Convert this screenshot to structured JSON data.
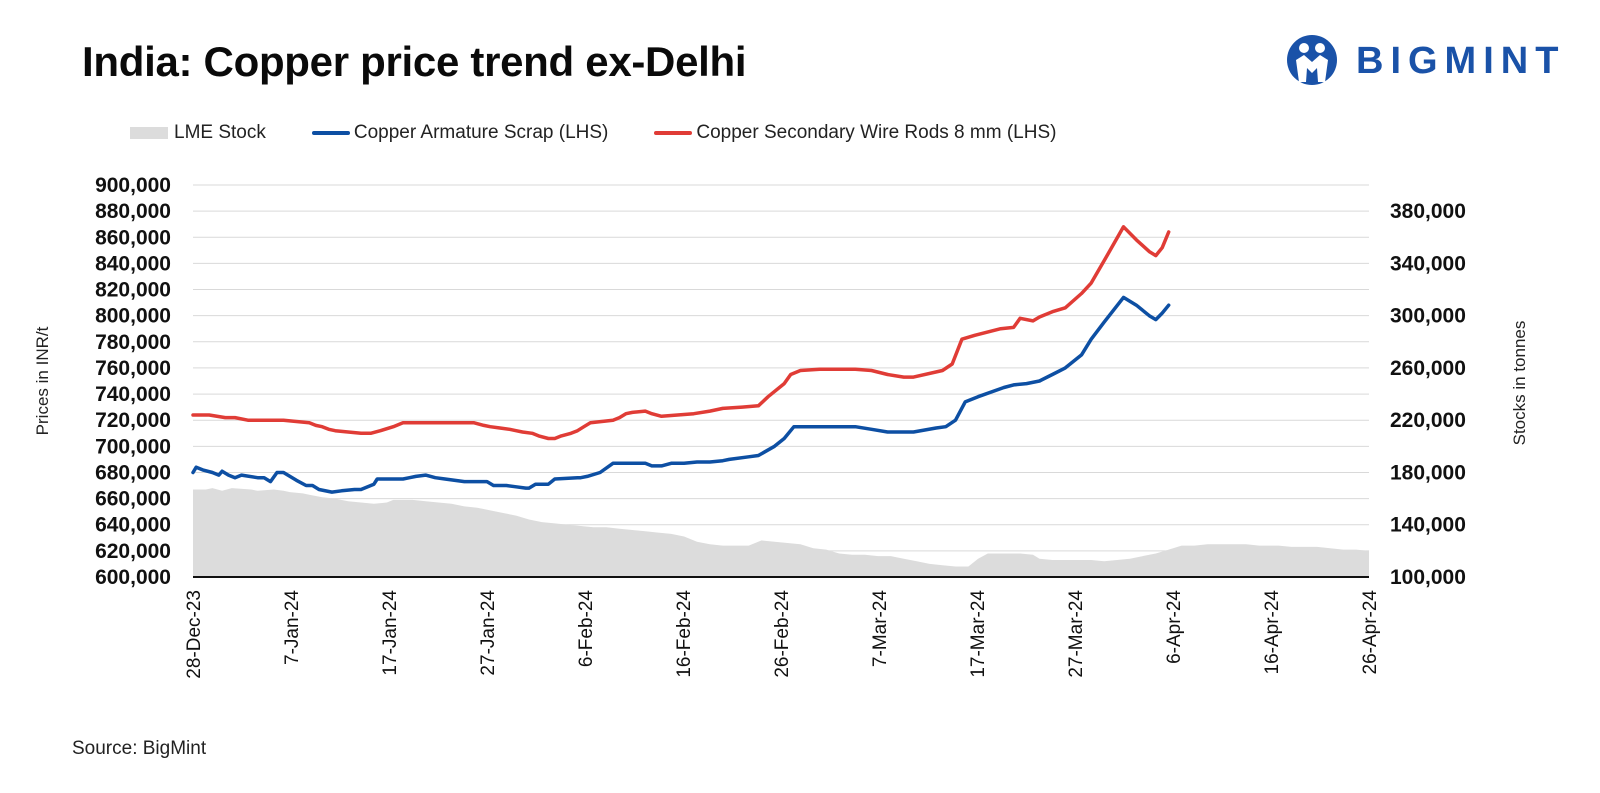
{
  "title": "India: Copper price trend ex-Delhi",
  "brand": {
    "name": "BIGMINT",
    "color": "#1a52a8"
  },
  "legend": [
    {
      "label": "LME Stock",
      "kind": "area",
      "color": "#dcdcdc"
    },
    {
      "label": "Copper Armature Scrap (LHS)",
      "kind": "line",
      "color": "#0d4fa3"
    },
    {
      "label": "Copper Secondary Wire Rods 8 mm (LHS)",
      "kind": "line",
      "color": "#e03c36"
    }
  ],
  "source": "Source: BigMint",
  "chart_data": {
    "type": "line",
    "title": "India: Copper price trend ex-Delhi",
    "x_start": "28-Dec-23",
    "x_end": "26-Apr-24",
    "num_days": 120,
    "x_ticks": [
      "28-Dec-23",
      "7-Jan-24",
      "17-Jan-24",
      "27-Jan-24",
      "6-Feb-24",
      "16-Feb-24",
      "26-Feb-24",
      "7-Mar-24",
      "17-Mar-24",
      "27-Mar-24",
      "6-Apr-24",
      "16-Apr-24",
      "26-Apr-24"
    ],
    "ylabel_left": "Prices in INR/t",
    "ylabel_right": "Stocks in tonnes",
    "ylim_left": [
      600000,
      900000
    ],
    "yticks_left": [
      "600,000",
      "620,000",
      "640,000",
      "660,000",
      "680,000",
      "700,000",
      "720,000",
      "740,000",
      "760,000",
      "780,000",
      "800,000",
      "820,000",
      "840,000",
      "860,000",
      "880,000",
      "900,000"
    ],
    "ylim_right": [
      100000,
      400000
    ],
    "yticks_right": [
      "100,000",
      "140,000",
      "180,000",
      "220,000",
      "260,000",
      "300,000",
      "340,000",
      "380,000"
    ],
    "series": [
      {
        "name": "Copper Armature Scrap (LHS)",
        "axis": "left",
        "color": "#0d4fa3",
        "points": [
          [
            0,
            680000
          ],
          [
            1,
            684000
          ],
          [
            3,
            682000
          ],
          [
            6,
            680000
          ],
          [
            8,
            678000
          ],
          [
            9,
            681000
          ],
          [
            11,
            678000
          ],
          [
            13,
            676000
          ],
          [
            15,
            678000
          ],
          [
            20,
            676000
          ],
          [
            22,
            676000
          ],
          [
            24,
            673000
          ],
          [
            26,
            680000
          ],
          [
            28,
            680000
          ],
          [
            32,
            674000
          ],
          [
            35,
            670000
          ],
          [
            37,
            670000
          ],
          [
            39,
            667000
          ],
          [
            43,
            665000
          ],
          [
            46,
            666000
          ],
          [
            50,
            667000
          ],
          [
            52,
            667000
          ],
          [
            56,
            671000
          ],
          [
            57,
            675000
          ],
          [
            63,
            675000
          ],
          [
            65,
            675000
          ],
          [
            67,
            676000
          ],
          [
            69,
            677000
          ],
          [
            72,
            678000
          ],
          [
            75,
            676000
          ],
          [
            78,
            675000
          ],
          [
            84,
            673000
          ],
          [
            87,
            673000
          ],
          [
            91,
            673000
          ],
          [
            93,
            670000
          ],
          [
            97,
            670000
          ],
          [
            100,
            669000
          ],
          [
            103,
            668000
          ],
          [
            104,
            668000
          ],
          [
            106,
            671000
          ],
          [
            110,
            671000
          ],
          [
            112,
            675000
          ],
          [
            119,
            676000
          ],
          [
            120,
            676000
          ],
          [
            122,
            677000
          ],
          [
            126,
            680000
          ],
          [
            130,
            687000
          ],
          [
            131,
            687000
          ],
          [
            133,
            687000
          ],
          [
            140,
            687000
          ],
          [
            142,
            685000
          ],
          [
            145,
            685000
          ],
          [
            148,
            687000
          ],
          [
            152,
            687000
          ],
          [
            156,
            688000
          ],
          [
            160,
            688000
          ],
          [
            164,
            689000
          ],
          [
            166,
            690000
          ],
          [
            172,
            692000
          ],
          [
            175,
            693000
          ],
          [
            180,
            700000
          ],
          [
            183,
            706000
          ],
          [
            186,
            715000
          ],
          [
            190,
            715000
          ],
          [
            194,
            715000
          ],
          [
            196,
            715000
          ],
          [
            205,
            715000
          ],
          [
            210,
            713000
          ],
          [
            215,
            711000
          ],
          [
            220,
            711000
          ],
          [
            223,
            711000
          ],
          [
            230,
            714000
          ],
          [
            233,
            715000
          ],
          [
            236,
            720000
          ],
          [
            239,
            734000
          ],
          [
            243,
            738000
          ],
          [
            251,
            745000
          ],
          [
            254,
            747000
          ],
          [
            258,
            748000
          ],
          [
            262,
            750000
          ],
          [
            266,
            755000
          ],
          [
            270,
            760000
          ],
          [
            275,
            770000
          ],
          [
            278,
            782000
          ],
          [
            282,
            795000
          ],
          [
            288,
            814000
          ],
          [
            292,
            808000
          ],
          [
            296,
            800000
          ],
          [
            298,
            797000
          ],
          [
            300,
            802000
          ],
          [
            302,
            808000
          ]
        ]
      },
      {
        "name": "Copper Secondary Wire Rods 8 mm (LHS)",
        "axis": "left",
        "color": "#e03c36",
        "points": [
          [
            0,
            724000
          ],
          [
            5,
            724000
          ],
          [
            10,
            722000
          ],
          [
            13,
            722000
          ],
          [
            17,
            720000
          ],
          [
            20,
            720000
          ],
          [
            25,
            720000
          ],
          [
            28,
            720000
          ],
          [
            36,
            718000
          ],
          [
            38,
            716000
          ],
          [
            40,
            715000
          ],
          [
            42,
            713000
          ],
          [
            44,
            712000
          ],
          [
            52,
            710000
          ],
          [
            55,
            710000
          ],
          [
            58,
            712000
          ],
          [
            62,
            715000
          ],
          [
            65,
            718000
          ],
          [
            67,
            718000
          ],
          [
            74,
            718000
          ],
          [
            78,
            718000
          ],
          [
            83,
            718000
          ],
          [
            87,
            718000
          ],
          [
            90,
            716000
          ],
          [
            92,
            715000
          ],
          [
            95,
            714000
          ],
          [
            98,
            713000
          ],
          [
            100,
            712000
          ],
          [
            102,
            711000
          ],
          [
            105,
            710000
          ],
          [
            107,
            708000
          ],
          [
            110,
            706000
          ],
          [
            112,
            706000
          ],
          [
            114,
            708000
          ],
          [
            117,
            710000
          ],
          [
            119,
            712000
          ],
          [
            121,
            715000
          ],
          [
            123,
            718000
          ],
          [
            130,
            720000
          ],
          [
            132,
            722000
          ],
          [
            134,
            725000
          ],
          [
            136,
            726000
          ],
          [
            140,
            727000
          ],
          [
            142,
            725000
          ],
          [
            145,
            723000
          ],
          [
            150,
            724000
          ],
          [
            155,
            725000
          ],
          [
            160,
            727000
          ],
          [
            164,
            729000
          ],
          [
            170,
            730000
          ],
          [
            175,
            731000
          ],
          [
            178,
            738000
          ],
          [
            183,
            748000
          ],
          [
            185,
            755000
          ],
          [
            188,
            758000
          ],
          [
            194,
            759000
          ],
          [
            196,
            759000
          ],
          [
            205,
            759000
          ],
          [
            210,
            758000
          ],
          [
            215,
            755000
          ],
          [
            220,
            753000
          ],
          [
            223,
            753000
          ],
          [
            232,
            758000
          ],
          [
            235,
            763000
          ],
          [
            238,
            782000
          ],
          [
            242,
            785000
          ],
          [
            250,
            790000
          ],
          [
            254,
            791000
          ],
          [
            256,
            798000
          ],
          [
            260,
            796000
          ],
          [
            262,
            799000
          ],
          [
            266,
            803000
          ],
          [
            270,
            806000
          ],
          [
            275,
            817000
          ],
          [
            278,
            825000
          ],
          [
            282,
            842000
          ],
          [
            288,
            868000
          ],
          [
            292,
            858000
          ],
          [
            296,
            849000
          ],
          [
            298,
            846000
          ],
          [
            300,
            852000
          ],
          [
            302,
            864000
          ]
        ]
      },
      {
        "name": "LME Stock",
        "axis": "right",
        "color": "#dcdcdc",
        "points": [
          [
            0,
            167000
          ],
          [
            4,
            167000
          ],
          [
            6,
            168000
          ],
          [
            9,
            166000
          ],
          [
            12,
            168000
          ],
          [
            18,
            167000
          ],
          [
            20,
            166000
          ],
          [
            25,
            167000
          ],
          [
            28,
            166000
          ],
          [
            30,
            165000
          ],
          [
            34,
            164000
          ],
          [
            36,
            163000
          ],
          [
            40,
            161000
          ],
          [
            44,
            160000
          ],
          [
            48,
            158000
          ],
          [
            52,
            157000
          ],
          [
            56,
            156000
          ],
          [
            60,
            157000
          ],
          [
            62,
            159000
          ],
          [
            68,
            159000
          ],
          [
            72,
            158000
          ],
          [
            76,
            157000
          ],
          [
            80,
            156000
          ],
          [
            84,
            154000
          ],
          [
            88,
            153000
          ],
          [
            92,
            151000
          ],
          [
            96,
            149000
          ],
          [
            100,
            147000
          ],
          [
            104,
            144000
          ],
          [
            108,
            142000
          ],
          [
            112,
            141000
          ],
          [
            116,
            140000
          ],
          [
            120,
            139000
          ],
          [
            124,
            138000
          ],
          [
            128,
            138000
          ],
          [
            132,
            137000
          ],
          [
            136,
            136000
          ],
          [
            140,
            135000
          ],
          [
            144,
            134000
          ],
          [
            148,
            133000
          ],
          [
            152,
            131000
          ],
          [
            156,
            127000
          ],
          [
            160,
            125000
          ],
          [
            164,
            124000
          ],
          [
            168,
            124000
          ],
          [
            172,
            124000
          ],
          [
            176,
            128000
          ],
          [
            180,
            127000
          ],
          [
            184,
            126000
          ],
          [
            188,
            125000
          ],
          [
            192,
            122000
          ],
          [
            196,
            121000
          ],
          [
            200,
            118000
          ],
          [
            204,
            117000
          ],
          [
            208,
            117000
          ],
          [
            212,
            116000
          ],
          [
            216,
            116000
          ],
          [
            220,
            114000
          ],
          [
            224,
            112000
          ],
          [
            228,
            110000
          ],
          [
            232,
            109000
          ],
          [
            236,
            108000
          ],
          [
            238,
            108000
          ],
          [
            240,
            108000
          ],
          [
            243,
            114000
          ],
          [
            246,
            118000
          ],
          [
            256,
            118000
          ],
          [
            260,
            117000
          ],
          [
            262,
            114000
          ],
          [
            266,
            113000
          ],
          [
            270,
            113000
          ],
          [
            278,
            113000
          ],
          [
            282,
            112000
          ],
          [
            286,
            113000
          ],
          [
            290,
            114000
          ],
          [
            294,
            116000
          ],
          [
            298,
            118000
          ],
          [
            302,
            121000
          ],
          [
            306,
            124000
          ],
          [
            310,
            124000
          ],
          [
            314,
            125000
          ],
          [
            320,
            125000
          ],
          [
            326,
            125000
          ],
          [
            330,
            124000
          ],
          [
            336,
            124000
          ],
          [
            340,
            123000
          ],
          [
            344,
            123000
          ],
          [
            348,
            123000
          ],
          [
            352,
            122000
          ],
          [
            356,
            121000
          ],
          [
            360,
            121000
          ],
          [
            364,
            120000
          ]
        ]
      }
    ]
  }
}
